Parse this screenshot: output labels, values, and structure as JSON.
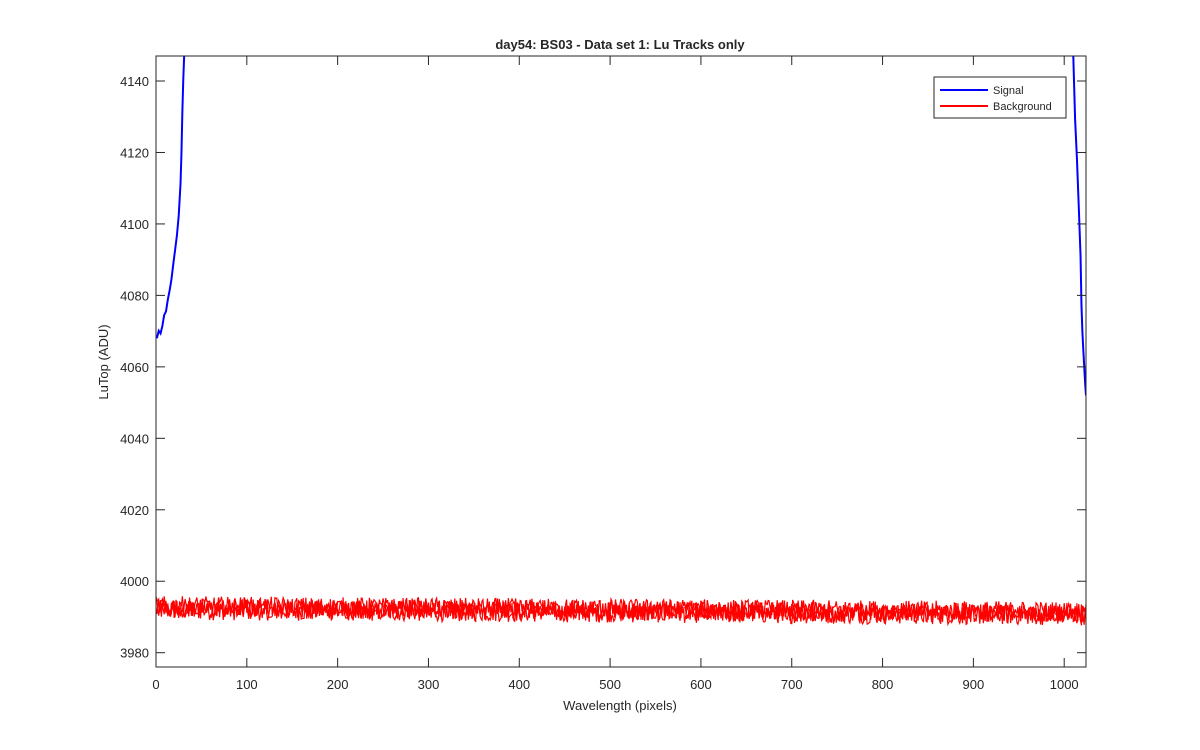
{
  "chart_data": {
    "type": "line",
    "title": "day54: BS03 - Data set 1: Lu Tracks only",
    "xlabel": "Wavelength (pixels)",
    "ylabel": "LuTop (ADU)",
    "xlim": [
      0,
      1024
    ],
    "ylim": [
      3976,
      4147
    ],
    "x_ticks": [
      0,
      100,
      200,
      300,
      400,
      500,
      600,
      700,
      800,
      900,
      1000
    ],
    "y_ticks": [
      3980,
      4000,
      4020,
      4040,
      4060,
      4080,
      4100,
      4120,
      4140
    ],
    "grid": false,
    "legend_position": "top-right",
    "series": [
      {
        "name": "Signal",
        "color": "#0000ff",
        "points": [
          [
            1,
            4068
          ],
          [
            3,
            4069
          ],
          [
            5,
            4070
          ],
          [
            7,
            4072
          ],
          [
            9,
            4074
          ],
          [
            11,
            4076
          ],
          [
            13,
            4079
          ],
          [
            15,
            4082
          ],
          [
            17,
            4085
          ],
          [
            19,
            4088
          ],
          [
            21,
            4092
          ],
          [
            23,
            4097
          ],
          [
            25,
            4103
          ],
          [
            27,
            4112
          ],
          [
            28,
            4120
          ],
          [
            29,
            4130
          ],
          [
            30,
            4140
          ],
          [
            31,
            4147
          ],
          [
            1010,
            4147
          ],
          [
            1012,
            4130
          ],
          [
            1014,
            4118
          ],
          [
            1016,
            4105
          ],
          [
            1018,
            4090
          ],
          [
            1019,
            4078
          ],
          [
            1020,
            4070
          ],
          [
            1021,
            4064
          ],
          [
            1022,
            4060
          ],
          [
            1023,
            4055
          ],
          [
            1024,
            4052
          ]
        ]
      },
      {
        "name": "Background",
        "color": "#ff0000",
        "center_start": 3992.5,
        "center_end": 3991.0,
        "band_min": 3987,
        "band_max": 3996
      }
    ]
  }
}
